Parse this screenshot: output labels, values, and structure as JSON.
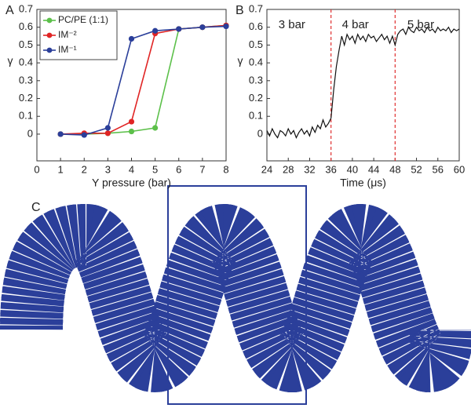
{
  "chart_data": [
    {
      "type": "line",
      "panel_label": "A",
      "xlabel": "Y pressure (bar)",
      "ylabel": "γ",
      "x": [
        1,
        2,
        3,
        4,
        5,
        6,
        7,
        8
      ],
      "xlim": [
        0,
        8
      ],
      "xticks": [
        0,
        1,
        2,
        3,
        4,
        5,
        6,
        7,
        8
      ],
      "ylim": [
        -0.15,
        0.7
      ],
      "yticks": [
        0,
        0.1,
        0.2,
        0.3,
        0.4,
        0.5,
        0.6,
        0.7
      ],
      "markers": true,
      "legend": "upper left",
      "series": [
        {
          "name": "PC/PE (1:1)",
          "color": "#5cc04a",
          "values": [
            0,
            0,
            0.005,
            0.015,
            0.035,
            0.59,
            0.6,
            0.61
          ]
        },
        {
          "name": "IM⁻²",
          "color": "#e02424",
          "values": [
            0,
            0.005,
            0.005,
            0.07,
            0.565,
            0.59,
            0.6,
            0.61
          ]
        },
        {
          "name": "IM⁻¹",
          "color": "#2b3f9a",
          "values": [
            0,
            -0.005,
            0.035,
            0.535,
            0.58,
            0.59,
            0.6,
            0.605
          ]
        }
      ]
    },
    {
      "type": "line",
      "panel_label": "B",
      "xlabel": "Time (μs)",
      "ylabel": "γ",
      "x": [
        24,
        24.5,
        25,
        25.5,
        26,
        26.5,
        27,
        27.5,
        28,
        28.5,
        29,
        29.5,
        30,
        30.5,
        31,
        31.5,
        32,
        32.5,
        33,
        33.5,
        34,
        34.5,
        35,
        35.5,
        36,
        36.5,
        37,
        37.5,
        38,
        38.5,
        39,
        39.5,
        40,
        40.5,
        41,
        41.5,
        42,
        42.5,
        43,
        43.5,
        44,
        44.5,
        45,
        45.5,
        46,
        46.5,
        47,
        47.5,
        48,
        48.5,
        49,
        49.5,
        50,
        50.5,
        51,
        51.5,
        52,
        52.5,
        53,
        53.5,
        54,
        54.5,
        55,
        55.5,
        56,
        56.5,
        57,
        57.5,
        58,
        58.5,
        59,
        59.5,
        60
      ],
      "xlim": [
        24,
        60
      ],
      "xticks": [
        24,
        28,
        32,
        36,
        40,
        44,
        48,
        52,
        56,
        60
      ],
      "ylim": [
        -0.15,
        0.7
      ],
      "yticks": [
        0,
        0.1,
        0.2,
        0.3,
        0.4,
        0.5,
        0.6,
        0.7
      ],
      "markers": false,
      "vlines": [
        36,
        48
      ],
      "vline_color": "#e03030",
      "annotations": [
        "3 bar",
        "4 bar",
        "5 bar"
      ],
      "series": [
        {
          "color": "#111111",
          "values": [
            0.02,
            -0.01,
            0.03,
            0,
            -0.02,
            0.02,
            0.01,
            -0.01,
            0.03,
            0,
            0.02,
            -0.02,
            0.01,
            0.03,
            0,
            0.02,
            -0.01,
            0.04,
            0.01,
            0.05,
            0.03,
            0.08,
            0.04,
            0.06,
            0.09,
            0.25,
            0.38,
            0.47,
            0.55,
            0.5,
            0.56,
            0.53,
            0.55,
            0.51,
            0.56,
            0.53,
            0.55,
            0.52,
            0.56,
            0.54,
            0.55,
            0.52,
            0.54,
            0.56,
            0.53,
            0.55,
            0.51,
            0.55,
            0.5,
            0.56,
            0.58,
            0.59,
            0.56,
            0.6,
            0.58,
            0.57,
            0.6,
            0.58,
            0.59,
            0.57,
            0.6,
            0.58,
            0.59,
            0.57,
            0.6,
            0.58,
            0.59,
            0.58,
            0.6,
            0.57,
            0.59,
            0.58,
            0.59
          ]
        }
      ]
    }
  ],
  "panel_c": {
    "label": "C"
  }
}
